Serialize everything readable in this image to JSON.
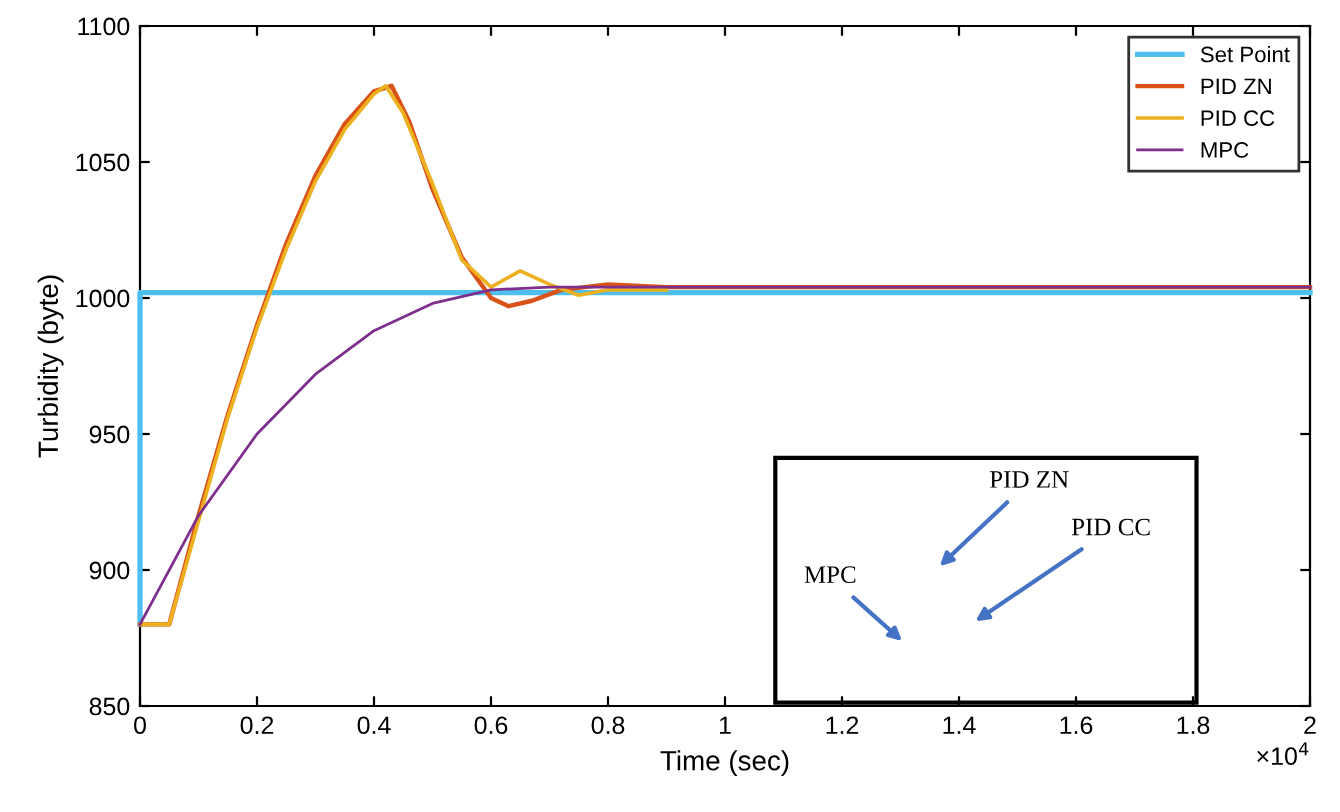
{
  "chart_data": {
    "type": "line",
    "xlabel": "Time (sec)",
    "ylabel": "Turbidity (byte)",
    "xlim": [
      0,
      2
    ],
    "ylim": [
      850,
      1100
    ],
    "xticks": [
      0,
      0.2,
      0.4,
      0.6,
      0.8,
      1,
      1.2,
      1.4,
      1.6,
      1.8,
      2
    ],
    "yticks": [
      850,
      900,
      950,
      1000,
      1050,
      1100
    ],
    "grid": false,
    "legend": "top right",
    "line_style": "solid",
    "marker": "none",
    "series": [
      {
        "name": "Set Point",
        "color": "#4dbeee",
        "x": [
          0,
          0,
          2
        ],
        "values": [
          880,
          1002,
          1002
        ]
      },
      {
        "name": "PID ZN",
        "color": "#d95319",
        "x": [
          0,
          0.05,
          0.1,
          0.15,
          0.2,
          0.25,
          0.3,
          0.35,
          0.4,
          0.43,
          0.46,
          0.5,
          0.55,
          0.6,
          0.63,
          0.67,
          0.72,
          0.8,
          0.9,
          1,
          2
        ],
        "values": [
          880,
          880,
          920,
          957,
          990,
          1020,
          1045,
          1064,
          1076,
          1078,
          1065,
          1040,
          1015,
          1000,
          997,
          999,
          1003,
          1005,
          1004,
          1004,
          1004
        ]
      },
      {
        "name": "PID CC",
        "color": "#edb120",
        "x": [
          0,
          0.05,
          0.1,
          0.15,
          0.2,
          0.25,
          0.3,
          0.35,
          0.4,
          0.42,
          0.45,
          0.5,
          0.55,
          0.6,
          0.65,
          0.7,
          0.75,
          0.8,
          0.9
        ],
        "values": [
          880,
          880,
          918,
          956,
          989,
          1018,
          1043,
          1062,
          1075,
          1078,
          1068,
          1042,
          1014,
          1004,
          1010,
          1005,
          1001,
          1003,
          1003
        ]
      },
      {
        "name": "MPC",
        "color": "#7e2f8e",
        "x": [
          0,
          0.1,
          0.2,
          0.3,
          0.4,
          0.5,
          0.6,
          0.7,
          2
        ],
        "values": [
          880,
          920,
          950,
          972,
          988,
          998,
          1003,
          1004,
          1004
        ]
      }
    ],
    "annotations": [
      "×10$^{4}$",
      "PID ZN",
      "PID CC",
      "MPC"
    ]
  }
}
